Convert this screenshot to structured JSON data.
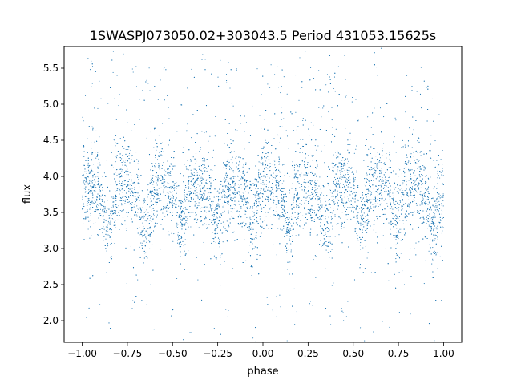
{
  "chart_data": {
    "type": "scatter",
    "title": "1SWASPJ073050.02+303043.5 Period 431053.15625s",
    "xlabel": "phase",
    "ylabel": "flux",
    "xlim": [
      -1.1,
      1.1
    ],
    "ylim": [
      1.7,
      5.8
    ],
    "x_ticks": [
      -1.0,
      -0.75,
      -0.5,
      -0.25,
      0.0,
      0.25,
      0.5,
      0.75,
      1.0
    ],
    "x_tick_labels": [
      "−1.00",
      "−0.75",
      "−0.50",
      "−0.25",
      "0.00",
      "0.25",
      "0.50",
      "0.75",
      "1.00"
    ],
    "y_ticks": [
      2.0,
      2.5,
      3.0,
      3.5,
      4.0,
      4.5,
      5.0,
      5.5
    ],
    "y_tick_labels": [
      "2.0",
      "2.5",
      "3.0",
      "3.5",
      "4.0",
      "4.5",
      "5.0",
      "5.5"
    ],
    "grid": false,
    "series": [
      {
        "color": "#1f77b4",
        "folding_period_phase": 0.2,
        "profile": [
          {
            "phase": 0.0,
            "flux_min": 2.9,
            "flux_max": 4.3,
            "center": 3.85
          },
          {
            "phase": 0.05,
            "flux_min": 3.2,
            "flux_max": 4.4,
            "center": 3.9
          },
          {
            "phase": 0.1,
            "flux_min": 3.1,
            "flux_max": 4.2,
            "center": 3.75
          },
          {
            "phase": 0.14,
            "flux_min": 2.8,
            "flux_max": 3.8,
            "center": 3.25
          },
          {
            "phase": 0.17,
            "flux_min": 2.9,
            "flux_max": 4.4,
            "center": 3.6
          }
        ]
      }
    ]
  }
}
